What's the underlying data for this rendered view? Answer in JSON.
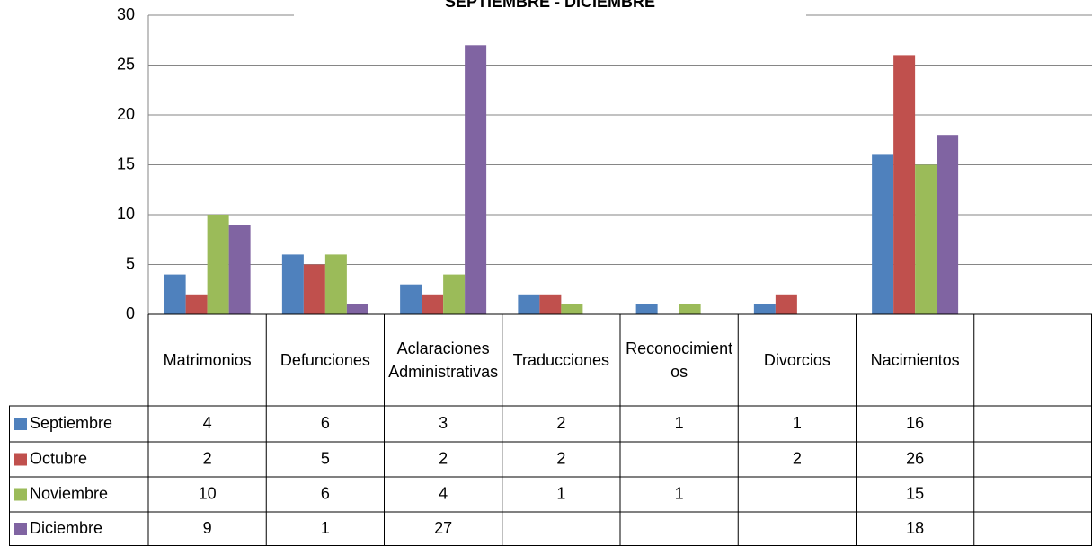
{
  "chart_data": {
    "type": "bar",
    "title": "SEPTIEMBRE - DICIEMBRE",
    "categories": [
      "Matrimonios",
      "Defunciones",
      "Aclaraciones Administrativas",
      "Traducciones",
      "Reconocimientos",
      "Divorcios",
      "Nacimientos",
      null
    ],
    "series": [
      {
        "name": "Septiembre",
        "color": "#4F81BD",
        "values": [
          4,
          6,
          3,
          2,
          1,
          1,
          16,
          null
        ]
      },
      {
        "name": "Octubre",
        "color": "#C0504D",
        "values": [
          2,
          5,
          2,
          2,
          null,
          2,
          26,
          null
        ]
      },
      {
        "name": "Noviembre",
        "color": "#9BBB59",
        "values": [
          10,
          6,
          4,
          1,
          1,
          null,
          15,
          null
        ]
      },
      {
        "name": "Diciembre",
        "color": "#8064A2",
        "values": [
          9,
          1,
          27,
          null,
          null,
          null,
          18,
          null
        ]
      }
    ],
    "ylim": [
      0,
      30
    ],
    "yticks": [
      0,
      5,
      10,
      15,
      20,
      25,
      30
    ],
    "grid": true,
    "data_table": true
  }
}
